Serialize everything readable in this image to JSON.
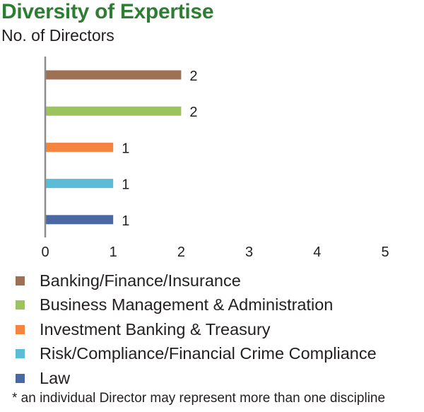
{
  "chart_data": {
    "type": "bar",
    "orientation": "horizontal",
    "title": "Diversity of Expertise",
    "subtitle": "No. of Directors",
    "categories": [
      "Banking/Finance/Insurance",
      "Business Management & Administration",
      "Investment Banking & Treasury",
      "Risk/Compliance/Financial Crime Compliance",
      "Law"
    ],
    "values": [
      2,
      2,
      1,
      1,
      1
    ],
    "value_labels": [
      "2",
      "2",
      "1",
      "1",
      "1"
    ],
    "colors": [
      "#9e7154",
      "#9dc35c",
      "#f4843f",
      "#5bbcd6",
      "#4a69a2"
    ],
    "xlim": [
      0,
      5
    ],
    "x_ticks": [
      "0",
      "1",
      "2",
      "3",
      "4",
      "5"
    ],
    "grid": false,
    "legend_placement": "bottom",
    "footnote": "* an individual Director may represent more than one discipline"
  }
}
